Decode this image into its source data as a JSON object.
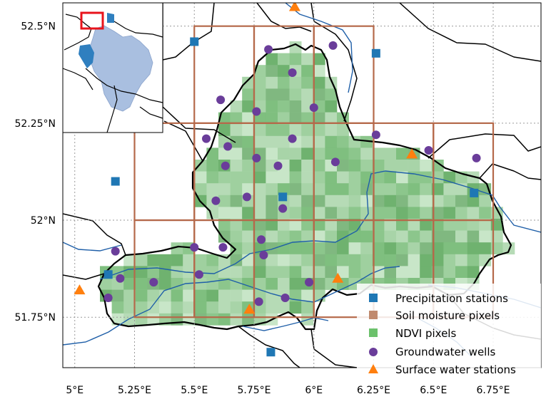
{
  "map": {
    "lon_range": [
      4.95,
      6.95
    ],
    "lat_range": [
      51.62,
      52.56
    ],
    "x_ticks": [
      {
        "value": 5.0,
        "label": "5°E"
      },
      {
        "value": 5.25,
        "label": "5.25°E"
      },
      {
        "value": 5.5,
        "label": "5.5°E"
      },
      {
        "value": 5.75,
        "label": "5.75°E"
      },
      {
        "value": 6.0,
        "label": "6°E"
      },
      {
        "value": 6.25,
        "label": "6.25°E"
      },
      {
        "value": 6.5,
        "label": "6.5°E"
      },
      {
        "value": 6.75,
        "label": "6.75°E"
      }
    ],
    "y_ticks": [
      {
        "value": 52.5,
        "label": "52.5°N"
      },
      {
        "value": 52.25,
        "label": "52.25°N"
      },
      {
        "value": 52.0,
        "label": "52°N"
      },
      {
        "value": 51.75,
        "label": "51.75°N"
      }
    ],
    "grid": true,
    "colors": {
      "precipitation": "#1f77b4",
      "soil_moisture": "#b5694a",
      "ndvi_base": "#7fbf7f",
      "groundwater": "#6a3d9a",
      "surface_water": "#ff7f0e",
      "river": "#1f5fa8",
      "border": "#000000"
    }
  },
  "legend": {
    "position": "lower-right",
    "items": [
      {
        "key": "precip",
        "label": "Precipitation stations",
        "marker": "square",
        "color": "#1f77b4"
      },
      {
        "key": "soil",
        "label": "Soil moisture pixels",
        "marker": "square",
        "color": "#c08a6e"
      },
      {
        "key": "ndvi",
        "label": "NDVI pixels",
        "marker": "square",
        "color": "#6cc16c"
      },
      {
        "key": "gw",
        "label": "Groundwater wells",
        "marker": "circle",
        "color": "#6a3d9a"
      },
      {
        "key": "sw",
        "label": "Surface water stations",
        "marker": "triangle",
        "color": "#ff7f0e"
      }
    ]
  },
  "chart_data": {
    "type": "scatter",
    "soil_moisture_grid": {
      "lon_edges_upper": [
        5.5,
        5.75,
        6.0,
        6.25
      ],
      "lat_edges_upper": [
        52.25,
        52.5
      ],
      "lon_edges_main": [
        5.25,
        5.5,
        5.75,
        6.0,
        6.25,
        6.5,
        6.75
      ],
      "lat_edges_main": [
        51.75,
        52.0,
        52.25
      ],
      "main_row_lon_start": 5.25,
      "middle_row_lon_start": 5.25
    },
    "precipitation_stations": [
      {
        "lon": 5.5,
        "lat": 52.46
      },
      {
        "lon": 6.26,
        "lat": 52.43
      },
      {
        "lon": 5.17,
        "lat": 52.1
      },
      {
        "lon": 5.87,
        "lat": 52.06
      },
      {
        "lon": 6.67,
        "lat": 52.07
      },
      {
        "lon": 5.14,
        "lat": 51.86
      },
      {
        "lon": 5.82,
        "lat": 51.66
      }
    ],
    "groundwater_wells": [
      {
        "lon": 5.81,
        "lat": 52.44
      },
      {
        "lon": 6.08,
        "lat": 52.45
      },
      {
        "lon": 5.91,
        "lat": 52.38
      },
      {
        "lon": 5.61,
        "lat": 52.31
      },
      {
        "lon": 5.76,
        "lat": 52.28
      },
      {
        "lon": 6.0,
        "lat": 52.29
      },
      {
        "lon": 5.55,
        "lat": 52.21
      },
      {
        "lon": 5.64,
        "lat": 52.19
      },
      {
        "lon": 5.76,
        "lat": 52.16
      },
      {
        "lon": 5.91,
        "lat": 52.21
      },
      {
        "lon": 5.63,
        "lat": 52.14
      },
      {
        "lon": 5.85,
        "lat": 52.14
      },
      {
        "lon": 6.09,
        "lat": 52.15
      },
      {
        "lon": 6.26,
        "lat": 52.22
      },
      {
        "lon": 6.48,
        "lat": 52.18
      },
      {
        "lon": 6.68,
        "lat": 52.16
      },
      {
        "lon": 5.59,
        "lat": 52.05
      },
      {
        "lon": 5.72,
        "lat": 52.06
      },
      {
        "lon": 5.87,
        "lat": 52.03
      },
      {
        "lon": 5.17,
        "lat": 51.92
      },
      {
        "lon": 5.5,
        "lat": 51.93
      },
      {
        "lon": 5.62,
        "lat": 51.93
      },
      {
        "lon": 5.78,
        "lat": 51.95
      },
      {
        "lon": 5.79,
        "lat": 51.91
      },
      {
        "lon": 5.19,
        "lat": 51.85
      },
      {
        "lon": 5.33,
        "lat": 51.84
      },
      {
        "lon": 5.52,
        "lat": 51.86
      },
      {
        "lon": 5.14,
        "lat": 51.8
      },
      {
        "lon": 5.77,
        "lat": 51.79
      },
      {
        "lon": 5.88,
        "lat": 51.8
      },
      {
        "lon": 5.98,
        "lat": 51.84
      }
    ],
    "surface_water_stations": [
      {
        "lon": 5.92,
        "lat": 52.55
      },
      {
        "lon": 6.41,
        "lat": 52.17
      },
      {
        "lon": 6.1,
        "lat": 51.85
      },
      {
        "lon": 5.02,
        "lat": 51.82
      },
      {
        "lon": 5.73,
        "lat": 51.77
      }
    ]
  }
}
